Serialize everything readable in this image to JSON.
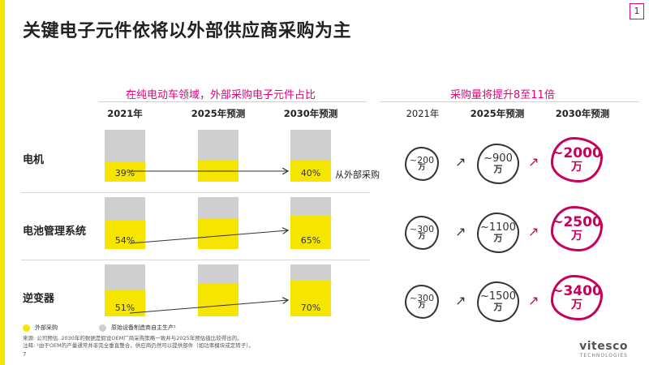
{
  "page": {
    "title": "关键电子元件依将以外部供应商采购为主",
    "page_number": "1",
    "footer_page": "7"
  },
  "colors": {
    "accent_yellow": "#f5e500",
    "oem_gray": "#cfcfcf",
    "magenta": "#e6007e",
    "dark_magenta": "#c8005a"
  },
  "left_section": {
    "heading": "在纯电动车领域，外部采购电子元件占比",
    "arrow_note": "从外部采购"
  },
  "right_section": {
    "heading": "采购量将提升8至11倍"
  },
  "chart_data": {
    "type": "bar",
    "stacked": true,
    "years": [
      "2021年",
      "2025年预测",
      "2030年预测"
    ],
    "rows": [
      {
        "label": "电机",
        "external_share_pct": [
          39,
          40,
          40
        ],
        "pct_labels": [
          "39%",
          "",
          "40%"
        ],
        "volume_labels": [
          "~200",
          "~900",
          "~2000"
        ],
        "unit": "万"
      },
      {
        "label": "电池管理系统",
        "external_share_pct": [
          54,
          60,
          65
        ],
        "pct_labels": [
          "54%",
          "",
          "65%"
        ],
        "volume_labels": [
          "~300",
          "~1100",
          "~2500"
        ],
        "unit": "万"
      },
      {
        "label": "逆变器",
        "external_share_pct": [
          51,
          62,
          70
        ],
        "pct_labels": [
          "51%",
          "",
          "70%"
        ],
        "volume_labels": [
          "~300",
          "~1500",
          "~3400"
        ],
        "unit": "万"
      }
    ],
    "legend": [
      {
        "name": "外部采购",
        "color": "#f5e500"
      },
      {
        "name": "原始设备制造商自主生产¹",
        "color": "#cfcfcf"
      }
    ]
  },
  "notes": {
    "source": "来源: 公司预估. 2030年的数据是假设OEM厂商采购策略一致并与2025年预估值比较得出的。",
    "footnote": "注释: ¹由于OEM的产量通常并非完全垂直整合，供应商仍然可以提供部件（如功率模块或定转子）。"
  },
  "logo": {
    "name": "vitesco",
    "sub": "TECHNOLOGIES"
  }
}
